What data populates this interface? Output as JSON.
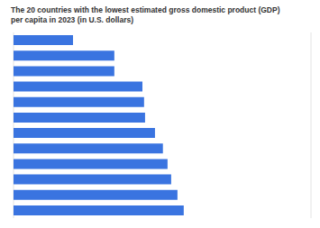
{
  "chart_data": {
    "type": "bar",
    "title": "The 20 countries with the lowest estimated gross domestic product (GDP) per capita in 2023 (in U.S. dollars)",
    "orientation": "horizontal",
    "categories": [
      null,
      null,
      null,
      null,
      null,
      null,
      null,
      null,
      null,
      null,
      null,
      null
    ],
    "values": [
      180,
      305,
      305,
      390,
      395,
      398,
      428,
      452,
      466,
      477,
      496,
      515
    ],
    "color": "#3a74e0",
    "xlim": [
      0,
      900
    ],
    "xticks": [
      0,
      100,
      200,
      300,
      400,
      500,
      600,
      700,
      800,
      900
    ],
    "grid": true,
    "tick_labels": false
  }
}
